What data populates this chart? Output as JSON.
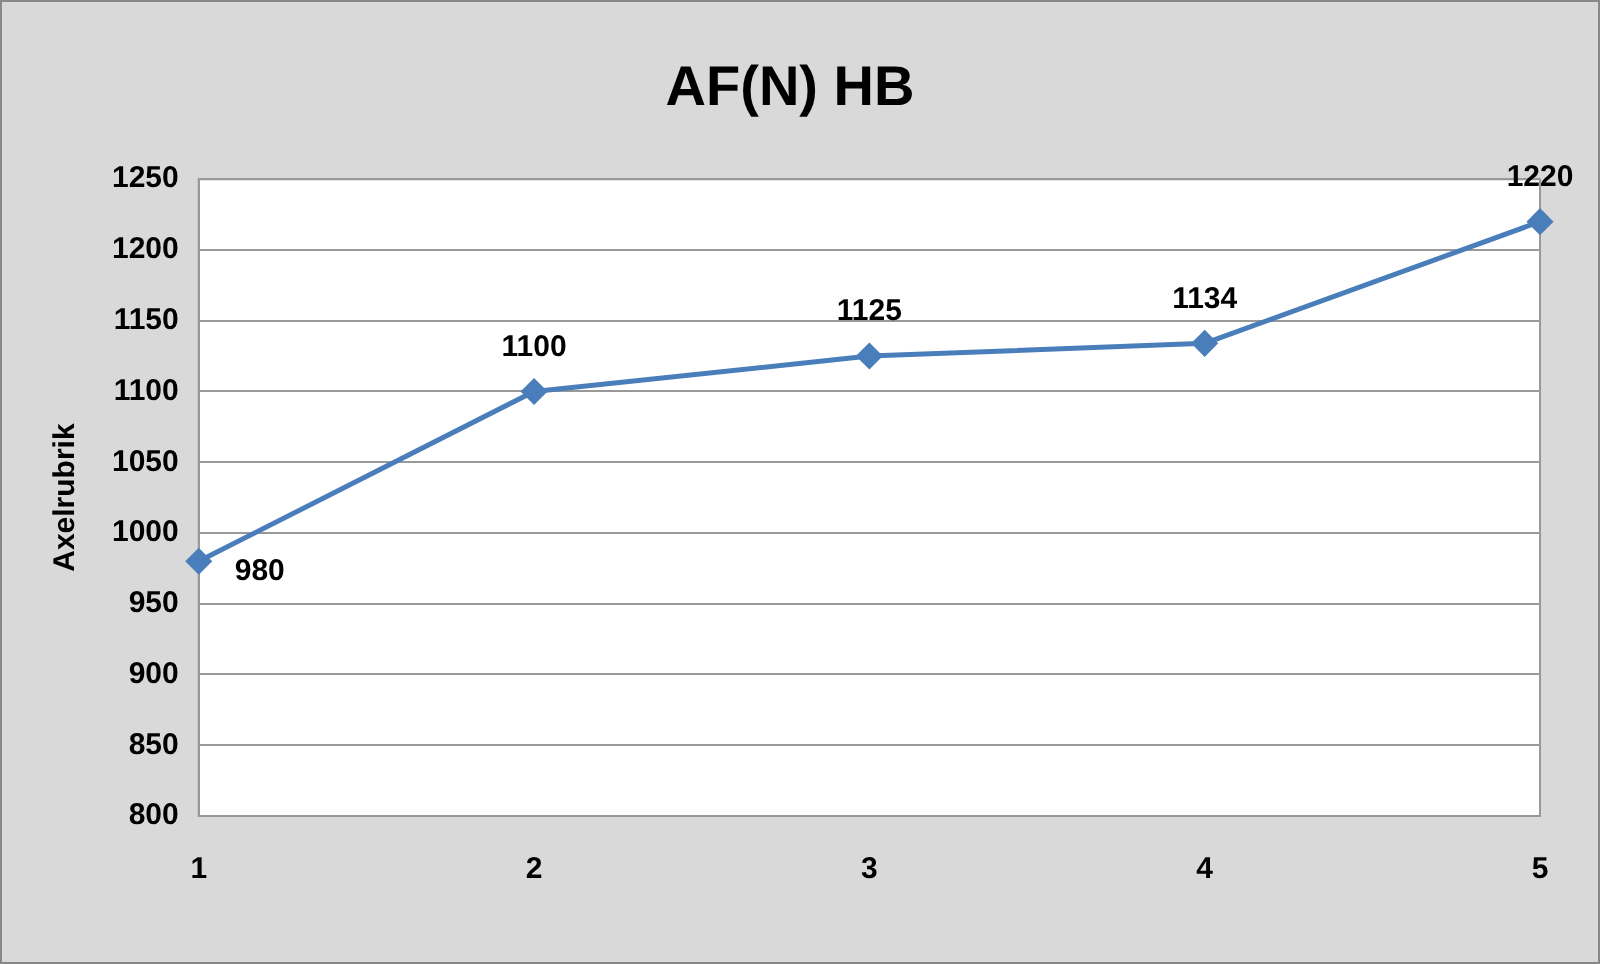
{
  "chart_data": {
    "type": "line",
    "title": "AF(N) HB",
    "ylabel": "Axelrubrik",
    "categories": [
      "1",
      "2",
      "3",
      "4",
      "5"
    ],
    "series": [
      {
        "color": "#4a7ebb",
        "values": [
          980,
          1100,
          1125,
          1134,
          1220
        ]
      }
    ],
    "ylim": [
      800,
      1250
    ],
    "yticks": [
      800,
      850,
      900,
      950,
      1000,
      1050,
      1100,
      1150,
      1200,
      1250
    ],
    "grid": "y",
    "legend": false,
    "marker": "diamond",
    "line_style": "solid",
    "data_labels": true
  }
}
